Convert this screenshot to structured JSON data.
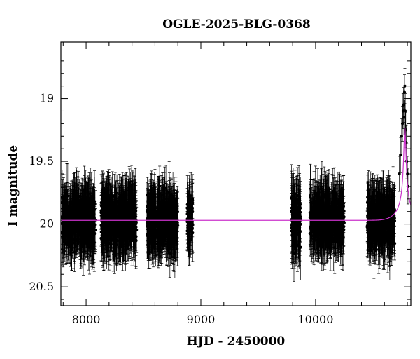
{
  "chart_data": {
    "type": "scatter",
    "title": "OGLE-2025-BLG-0368",
    "xlabel": "HJD - 2450000",
    "ylabel": "I magnitude",
    "xlim": [
      7780,
      10830
    ],
    "ylim": [
      20.65,
      18.55
    ],
    "y_inverted": true,
    "x_ticks": [
      8000,
      9000,
      10000
    ],
    "x_tick_labels": [
      "8000",
      "9000",
      "10000"
    ],
    "y_ticks": [
      19,
      19.5,
      20,
      20.5
    ],
    "y_tick_labels": [
      "19",
      "19.5",
      "20",
      "20.5"
    ],
    "grid": false,
    "legend": "none",
    "colors": {
      "points": "#000000",
      "model": "#cc33cc",
      "axes": "#000000"
    },
    "series": [
      {
        "kind": "observations",
        "marker": "filled circle with error bars",
        "seasons": [
          {
            "x_range": [
              7790,
              8080
            ],
            "mean_mag": 19.97,
            "scatter": 0.22,
            "error_bar": 0.2
          },
          {
            "x_range": [
              8130,
              8440
            ],
            "mean_mag": 19.97,
            "scatter": 0.22,
            "error_bar": 0.2
          },
          {
            "x_range": [
              8530,
              8800
            ],
            "mean_mag": 19.97,
            "scatter": 0.22,
            "error_bar": 0.2
          },
          {
            "x_range": [
              8880,
              8930
            ],
            "mean_mag": 19.97,
            "scatter": 0.2,
            "error_bar": 0.18
          },
          {
            "x_range": [
              9790,
              9870
            ],
            "mean_mag": 19.97,
            "scatter": 0.24,
            "error_bar": 0.22
          },
          {
            "x_range": [
              9950,
              10250
            ],
            "mean_mag": 19.97,
            "scatter": 0.22,
            "error_bar": 0.2
          },
          {
            "x_range": [
              10450,
              10690
            ],
            "mean_mag": 19.97,
            "scatter": 0.22,
            "error_bar": 0.2
          }
        ],
        "event_points": [
          {
            "x": 10730,
            "y": 19.6
          },
          {
            "x": 10740,
            "y": 19.45
          },
          {
            "x": 10750,
            "y": 19.3
          },
          {
            "x": 10757,
            "y": 19.2
          },
          {
            "x": 10762,
            "y": 19.1
          },
          {
            "x": 10766,
            "y": 19.05
          },
          {
            "x": 10770,
            "y": 19.15
          },
          {
            "x": 10775,
            "y": 18.95
          },
          {
            "x": 10778,
            "y": 18.9
          },
          {
            "x": 10782,
            "y": 19.1
          },
          {
            "x": 10786,
            "y": 19.25
          },
          {
            "x": 10790,
            "y": 19.35
          },
          {
            "x": 10795,
            "y": 19.5
          },
          {
            "x": 10800,
            "y": 19.6
          },
          {
            "x": 10805,
            "y": 19.7
          }
        ]
      },
      {
        "kind": "model",
        "line": "solid",
        "baseline_mag": 19.97,
        "peak_mag": 19.23,
        "peak_x": 10778,
        "width_days": 20
      }
    ]
  }
}
